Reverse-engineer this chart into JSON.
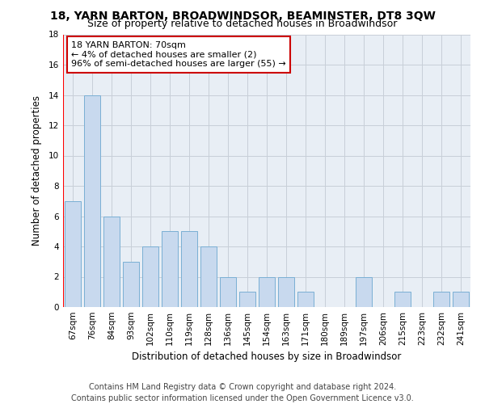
{
  "title": "18, YARN BARTON, BROADWINDSOR, BEAMINSTER, DT8 3QW",
  "subtitle": "Size of property relative to detached houses in Broadwindsor",
  "xlabel": "Distribution of detached houses by size in Broadwindsor",
  "ylabel": "Number of detached properties",
  "categories": [
    "67sqm",
    "76sqm",
    "84sqm",
    "93sqm",
    "102sqm",
    "110sqm",
    "119sqm",
    "128sqm",
    "136sqm",
    "145sqm",
    "154sqm",
    "163sqm",
    "171sqm",
    "180sqm",
    "189sqm",
    "197sqm",
    "206sqm",
    "215sqm",
    "223sqm",
    "232sqm",
    "241sqm"
  ],
  "values": [
    7,
    14,
    6,
    3,
    4,
    5,
    5,
    4,
    2,
    1,
    2,
    2,
    1,
    0,
    0,
    2,
    0,
    1,
    0,
    1,
    1
  ],
  "bar_color": "#c8d9ee",
  "bar_edge_color": "#7aafd4",
  "annotation_line1": "18 YARN BARTON: 70sqm",
  "annotation_line2": "← 4% of detached houses are smaller (2)",
  "annotation_line3": "96% of semi-detached houses are larger (55) →",
  "annotation_box_color": "#ffffff",
  "annotation_box_edge": "#cc0000",
  "ylim": [
    0,
    18
  ],
  "yticks": [
    0,
    2,
    4,
    6,
    8,
    10,
    12,
    14,
    16,
    18
  ],
  "footer_line1": "Contains HM Land Registry data © Crown copyright and database right 2024.",
  "footer_line2": "Contains public sector information licensed under the Open Government Licence v3.0.",
  "bg_color": "#ffffff",
  "plot_bg_color": "#e8eef5",
  "grid_color": "#c8cfd8",
  "title_fontsize": 10,
  "subtitle_fontsize": 9,
  "axis_label_fontsize": 8.5,
  "tick_fontsize": 7.5,
  "footer_fontsize": 7,
  "annotation_fontsize": 8
}
